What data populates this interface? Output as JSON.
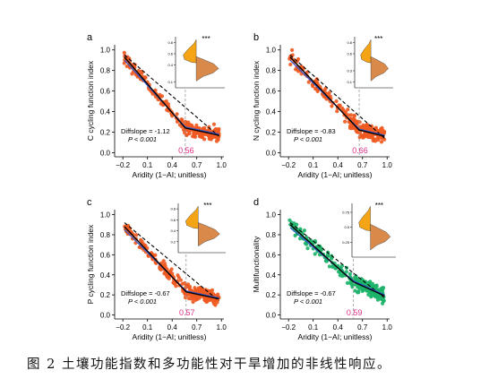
{
  "caption": "图 2 土壤功能指数和多功能性对干旱增加的非线性响应。",
  "colors": {
    "orange_points": "#f05a22",
    "green_points": "#1db36a",
    "fit_line": "#000000",
    "blue_line": "#3355cc",
    "threshold_line": "#999999",
    "threshold_label": "#e0308a",
    "violin_top": "#f5a416",
    "violin_bottom": "#d98a4a"
  },
  "chart_data": [
    {
      "type": "scatter",
      "panel_label": "a",
      "xlabel": "Aridity (1−AI; unitless)",
      "ylabel": "C cycling function index",
      "xlim": [
        -0.3,
        1.03
      ],
      "ylim": [
        -0.04,
        1.05
      ],
      "xticks": [
        -0.2,
        0.1,
        0.4,
        0.7,
        1.0
      ],
      "xtick_labels": [
        "−0.2",
        "0.1",
        "0.4",
        "0.7",
        "1.0"
      ],
      "yticks": [
        0.0,
        0.2,
        0.4,
        0.6,
        0.8,
        1.0
      ],
      "ytick_labels": [
        "0.0",
        "0.2",
        "0.4",
        "0.6",
        "0.8",
        "1.0"
      ],
      "point_color": "orange",
      "threshold": 0.56,
      "threshold_label": "0.56",
      "diffslope_text": "Diffslope = -1.12",
      "p_text": "P < 0.001",
      "fit_segments": [
        [
          -0.18,
          0.93
        ],
        [
          0.56,
          0.24
        ],
        [
          0.97,
          0.17
        ]
      ],
      "dashed_line": [
        [
          -0.18,
          0.95
        ],
        [
          0.97,
          0.16
        ]
      ],
      "blue_line": [
        [
          -0.18,
          0.9
        ],
        [
          0.56,
          0.25
        ],
        [
          0.97,
          0.18
        ]
      ],
      "inset": {
        "significance": "***",
        "yticks": [
          0.1,
          0.4,
          0.6,
          0.8
        ],
        "ytick_labels": [
          "0.1",
          "0.4",
          "0.6",
          "0.8"
        ],
        "ylim": [
          0.0,
          0.9
        ]
      }
    },
    {
      "type": "scatter",
      "panel_label": "b",
      "xlabel": "Aridity (1−AI; unitless)",
      "ylabel": "N cycling function index",
      "xlim": [
        -0.3,
        1.03
      ],
      "ylim": [
        -0.04,
        1.05
      ],
      "xticks": [
        -0.2,
        0.1,
        0.4,
        0.7,
        1.0
      ],
      "xtick_labels": [
        "−0.2",
        "0.1",
        "0.4",
        "0.7",
        "1.0"
      ],
      "yticks": [
        0.0,
        0.2,
        0.4,
        0.6,
        0.8,
        1.0
      ],
      "ytick_labels": [
        "0.0",
        "0.2",
        "0.4",
        "0.6",
        "0.8",
        "1.0"
      ],
      "point_color": "orange",
      "threshold": 0.66,
      "threshold_label": "0.66",
      "diffslope_text": "Diffslope = -0.83",
      "p_text": "P < 0.001",
      "fit_segments": [
        [
          -0.18,
          0.93
        ],
        [
          0.66,
          0.22
        ],
        [
          0.97,
          0.16
        ]
      ],
      "dashed_line": [
        [
          -0.18,
          0.95
        ],
        [
          0.97,
          0.14
        ]
      ],
      "blue_line": [
        [
          -0.18,
          0.9
        ],
        [
          0.66,
          0.23
        ],
        [
          0.97,
          0.17
        ]
      ],
      "inset": {
        "significance": "***",
        "yticks": [
          0.1,
          0.3,
          0.6,
          0.8
        ],
        "ytick_labels": [
          "0.1",
          "0.3",
          "0.6",
          "0.8"
        ],
        "ylim": [
          0.0,
          0.9
        ]
      }
    },
    {
      "type": "scatter",
      "panel_label": "c",
      "xlabel": "Aridity (1−AI; unitless)",
      "ylabel": "P cycling function index",
      "xlim": [
        -0.3,
        1.03
      ],
      "ylim": [
        -0.04,
        1.05
      ],
      "xticks": [
        -0.2,
        0.1,
        0.4,
        0.7,
        1.0
      ],
      "xtick_labels": [
        "−0.2",
        "0.1",
        "0.4",
        "0.7",
        "1.0"
      ],
      "yticks": [
        0.0,
        0.2,
        0.4,
        0.6,
        0.8,
        1.0
      ],
      "ytick_labels": [
        "0.0",
        "0.2",
        "0.4",
        "0.6",
        "0.8",
        "1.0"
      ],
      "point_color": "orange",
      "threshold": 0.57,
      "threshold_label": "0.57",
      "diffslope_text": "Diffslope = -0.67",
      "p_text": "P < 0.001",
      "fit_segments": [
        [
          -0.18,
          0.88
        ],
        [
          0.57,
          0.23
        ],
        [
          0.97,
          0.16
        ]
      ],
      "dashed_line": [
        [
          -0.18,
          0.92
        ],
        [
          0.97,
          0.14
        ]
      ],
      "blue_line": [
        [
          -0.18,
          0.85
        ],
        [
          0.57,
          0.24
        ],
        [
          0.97,
          0.17
        ]
      ],
      "inset": {
        "significance": "***",
        "yticks": [
          0.2,
          0.4,
          0.6,
          0.8
        ],
        "ytick_labels": [
          "0.2",
          "0.4",
          "0.6",
          "0.8"
        ],
        "ylim": [
          0.0,
          0.9
        ]
      }
    },
    {
      "type": "scatter",
      "panel_label": "d",
      "xlabel": "Aridity (1−AI; unitless)",
      "ylabel": "Multifunctionality",
      "xlim": [
        -0.3,
        1.03
      ],
      "ylim": [
        -0.04,
        1.05
      ],
      "xticks": [
        -0.2,
        0.1,
        0.4,
        0.7,
        1.0
      ],
      "xtick_labels": [
        "−0.2",
        "0.1",
        "0.4",
        "0.7",
        "1.0"
      ],
      "yticks": [
        0.0,
        0.2,
        0.4,
        0.6,
        0.8,
        1.0
      ],
      "ytick_labels": [
        "0.0",
        "0.2",
        "0.4",
        "0.6",
        "0.8",
        "1.0"
      ],
      "point_color": "green",
      "threshold": 0.59,
      "threshold_label": "0.59",
      "diffslope_text": "Diffslope = -0.67",
      "p_text": "P < 0.001",
      "fit_segments": [
        [
          -0.18,
          0.9
        ],
        [
          0.59,
          0.33
        ],
        [
          0.97,
          0.19
        ]
      ],
      "dashed_line": [
        [
          -0.18,
          0.92
        ],
        [
          0.97,
          0.17
        ]
      ],
      "blue_line": [
        [
          -0.18,
          0.87
        ],
        [
          0.59,
          0.34
        ],
        [
          0.97,
          0.2
        ]
      ],
      "inset": {
        "significance": "***",
        "yticks": [
          0.25,
          0.5,
          0.75
        ],
        "ytick_labels": [
          "0.25",
          "0.5",
          "0.75"
        ],
        "ylim": [
          0.0,
          0.9
        ]
      }
    }
  ]
}
